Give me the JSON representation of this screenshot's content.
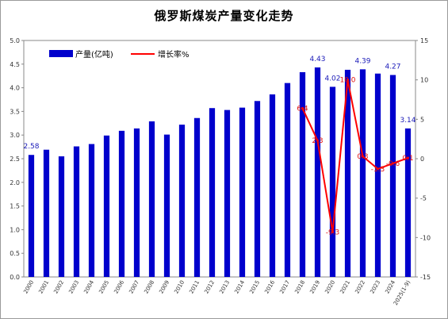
{
  "chart_data": {
    "type": "bar",
    "title": "俄罗斯煤炭产量变化走势",
    "categories": [
      "2000",
      "2001",
      "2002",
      "2003",
      "2004",
      "2005",
      "2006",
      "2007",
      "2008",
      "2009",
      "2010",
      "2011",
      "2012",
      "2013",
      "2014",
      "2015",
      "2016",
      "2017",
      "2018",
      "2019",
      "2020",
      "2021",
      "2022",
      "2023",
      "2024",
      "2025(1-9)"
    ],
    "series": [
      {
        "name": "产量(亿吨)",
        "type": "bar",
        "axis": "left",
        "color": "#0000cc",
        "values": [
          2.58,
          2.69,
          2.55,
          2.76,
          2.81,
          2.99,
          3.09,
          3.14,
          3.29,
          3.01,
          3.22,
          3.36,
          3.57,
          3.53,
          3.58,
          3.72,
          3.86,
          4.1,
          4.33,
          4.43,
          4.02,
          4.38,
          4.39,
          4.3,
          4.27,
          3.14
        ],
        "labels": {
          "0": "2.58",
          "19": "4.43",
          "20": "4.02",
          "22": "4.39",
          "24": "4.27",
          "25": "3.14"
        }
      },
      {
        "name": "增长率%",
        "type": "line",
        "axis": "right",
        "color": "#ff0000",
        "points": [
          {
            "category": "2018",
            "value": 6.4,
            "label": "6.4"
          },
          {
            "category": "2019",
            "value": 2.3,
            "label": "2.3"
          },
          {
            "category": "2020",
            "value": -9.3,
            "label": "-9.3"
          },
          {
            "category": "2021",
            "value": 10.0,
            "label": "10.0"
          },
          {
            "category": "2022",
            "value": 0.3,
            "label": "0.3"
          },
          {
            "category": "2023",
            "value": -1.3,
            "label": "-1.3"
          },
          {
            "category": "2024",
            "value": -0.6,
            "label": "-0.6"
          },
          {
            "category": "2025(1-9)",
            "value": 0.1,
            "label": "0.1"
          }
        ]
      }
    ],
    "y_left": {
      "min": 0,
      "max": 5.0,
      "step": 0.5,
      "ticks": [
        "0.0",
        "0.5",
        "1.0",
        "1.5",
        "2.0",
        "2.5",
        "3.0",
        "3.5",
        "4.0",
        "4.5",
        "5.0"
      ]
    },
    "y_right": {
      "min": -15,
      "max": 15,
      "step": 5,
      "ticks": [
        "-15",
        "-10",
        "-5",
        "0",
        "5",
        "10",
        "15"
      ]
    },
    "legend_position": "top-left",
    "grid": false
  }
}
